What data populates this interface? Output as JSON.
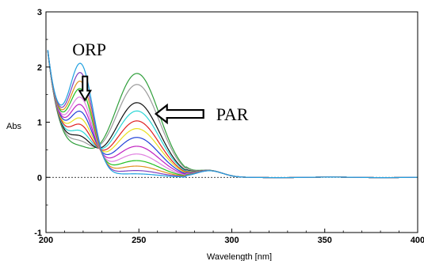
{
  "chart_data": {
    "type": "line",
    "title": "",
    "xlabel": "Wavelength [nm]",
    "ylabel": "Abs",
    "xlim": [
      200,
      400
    ],
    "ylim": [
      -1,
      3
    ],
    "x_ticks": [
      "200",
      "250",
      "300",
      "350",
      "400"
    ],
    "y_ticks": [
      "-1",
      "0",
      "1",
      "2",
      "3"
    ],
    "grid": false,
    "zero_line": "dashed",
    "annotations": [
      {
        "text": "ORP",
        "arrow": "down",
        "points_to": [
          221,
          1.4
        ]
      },
      {
        "text": "PAR",
        "arrow": "left",
        "points_to": [
          260,
          1.15
        ]
      }
    ],
    "series": [
      {
        "color": "#2e9e3a",
        "par_peak": 1.88,
        "orp_height": 0.28
      },
      {
        "color": "#9a9a9a",
        "par_peak": 1.68,
        "orp_height": 0.38
      },
      {
        "color": "#111111",
        "par_peak": 1.35,
        "orp_height": 0.48
      },
      {
        "color": "#2bd6d6",
        "par_peak": 1.2,
        "orp_height": 0.58
      },
      {
        "color": "#e02020",
        "par_peak": 1.02,
        "orp_height": 0.7
      },
      {
        "color": "#e8e020",
        "par_peak": 0.88,
        "orp_height": 0.82
      },
      {
        "color": "#2040d8",
        "par_peak": 0.72,
        "orp_height": 0.95
      },
      {
        "color": "#c020c0",
        "par_peak": 0.56,
        "orp_height": 1.08
      },
      {
        "color": "#e080e0",
        "par_peak": 0.42,
        "orp_height": 1.22
      },
      {
        "color": "#20c020",
        "par_peak": 0.3,
        "orp_height": 1.38
      },
      {
        "color": "#e09020",
        "par_peak": 0.2,
        "orp_height": 1.52
      },
      {
        "color": "#8040c0",
        "par_peak": 0.12,
        "orp_height": 1.68
      },
      {
        "color": "#20a0e0",
        "par_peak": 0.06,
        "orp_height": 1.85
      }
    ]
  }
}
